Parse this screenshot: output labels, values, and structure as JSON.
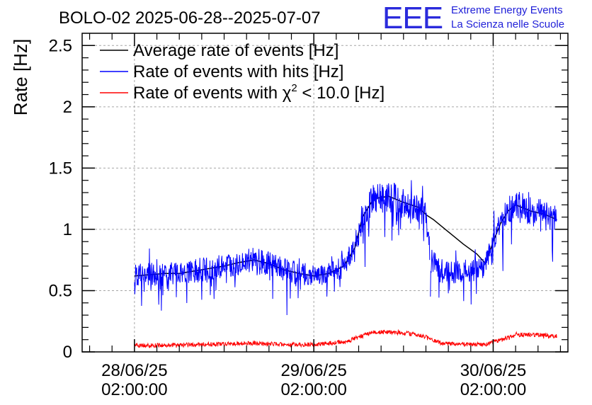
{
  "header": {
    "title": "BOLO-02 2025-06-28--2025-07-07",
    "logo_text": "EEE",
    "logo_line1": "Extreme Energy Events",
    "logo_line2": "La Scienza nelle Scuole"
  },
  "colors": {
    "average": "#000000",
    "hits": "#0000ff",
    "chi2": "#ff0000",
    "logo": "#2b2bdc"
  },
  "chart_data": {
    "type": "line",
    "title": "BOLO-02 2025-06-28--2025-07-07",
    "ylabel": "Rate [Hz]",
    "xlabel": "",
    "ylim": [
      0,
      2.6
    ],
    "yticks": [
      "0",
      "0.5",
      "1",
      "1.5",
      "2",
      "2.5"
    ],
    "x_ticks": [
      {
        "line1": "28/06/25",
        "line2": "02:00:00"
      },
      {
        "line1": "29/06/25",
        "line2": "02:00:00"
      },
      {
        "line1": "30/06/25",
        "line2": "02:00:00"
      }
    ],
    "x_unit": "hours since 28/06/25 02:00:00",
    "xlim": [
      -7,
      58
    ],
    "grid": true,
    "legend_position": "top-left",
    "legend": [
      {
        "key": "average",
        "label": "Average rate of events [Hz]"
      },
      {
        "key": "hits",
        "label": "Rate of events with hits [Hz]"
      },
      {
        "key": "chi2",
        "label_prefix": "Rate of events with χ",
        "label_sup": "2",
        "label_suffix": " < 10.0 [Hz]"
      }
    ],
    "series": [
      {
        "name": "Average rate of events [Hz]",
        "key": "average",
        "points": [
          [
            0.0,
            0.62
          ],
          [
            2.0,
            0.63
          ],
          [
            4.0,
            0.64
          ],
          [
            6.0,
            0.64
          ],
          [
            8.0,
            0.66
          ],
          [
            10.0,
            0.68
          ],
          [
            12.0,
            0.7
          ],
          [
            14.0,
            0.73
          ],
          [
            16.0,
            0.75
          ],
          [
            18.0,
            0.72
          ],
          [
            20.0,
            0.67
          ],
          [
            22.0,
            0.64
          ],
          [
            24.0,
            0.62
          ],
          [
            26.0,
            0.64
          ],
          [
            28.0,
            0.7
          ],
          [
            29.5,
            0.85
          ],
          [
            30.5,
            1.1
          ],
          [
            32.0,
            1.25
          ],
          [
            34.0,
            1.27
          ],
          [
            36.0,
            1.22
          ],
          [
            38.0,
            1.18
          ],
          [
            39.0,
            1.12
          ],
          [
            40.0,
            1.08
          ],
          [
            42.0,
            0.98
          ],
          [
            44.0,
            0.88
          ],
          [
            45.8,
            0.8
          ],
          [
            47.0,
            0.72
          ],
          [
            48.0,
            0.9
          ],
          [
            49.0,
            1.05
          ],
          [
            50.0,
            1.15
          ],
          [
            51.0,
            1.2
          ],
          [
            53.0,
            1.15
          ],
          [
            55.0,
            1.12
          ],
          [
            56.5,
            1.08
          ]
        ]
      },
      {
        "name": "Rate of events with hits [Hz]",
        "key": "hits",
        "points": [
          [
            0.0,
            0.62
          ],
          [
            2.0,
            0.63
          ],
          [
            4.0,
            0.64
          ],
          [
            6.0,
            0.64
          ],
          [
            8.0,
            0.66
          ],
          [
            10.0,
            0.68
          ],
          [
            12.0,
            0.7
          ],
          [
            14.0,
            0.73
          ],
          [
            16.0,
            0.75
          ],
          [
            18.0,
            0.72
          ],
          [
            20.0,
            0.67
          ],
          [
            22.0,
            0.64
          ],
          [
            24.0,
            0.62
          ],
          [
            26.0,
            0.64
          ],
          [
            28.0,
            0.7
          ],
          [
            29.5,
            0.85
          ],
          [
            30.5,
            1.1
          ],
          [
            32.0,
            1.25
          ],
          [
            34.0,
            1.27
          ],
          [
            36.0,
            1.22
          ],
          [
            38.0,
            1.18
          ],
          [
            39.0,
            1.12
          ],
          [
            39.6,
            0.75
          ],
          [
            41.0,
            0.66
          ],
          [
            43.0,
            0.65
          ],
          [
            45.0,
            0.66
          ],
          [
            45.8,
            0.68
          ],
          [
            47.0,
            0.72
          ],
          [
            48.0,
            0.9
          ],
          [
            49.0,
            1.05
          ],
          [
            50.0,
            1.15
          ],
          [
            51.0,
            1.2
          ],
          [
            53.0,
            1.15
          ],
          [
            55.0,
            1.12
          ],
          [
            56.5,
            1.08
          ]
        ]
      },
      {
        "name": "Rate of events with χ2 < 10.0 [Hz]",
        "key": "chi2",
        "points": [
          [
            0.0,
            0.05
          ],
          [
            4.0,
            0.055
          ],
          [
            8.0,
            0.06
          ],
          [
            12.0,
            0.065
          ],
          [
            16.0,
            0.07
          ],
          [
            20.0,
            0.06
          ],
          [
            24.0,
            0.06
          ],
          [
            28.0,
            0.08
          ],
          [
            30.0,
            0.12
          ],
          [
            32.0,
            0.16
          ],
          [
            35.0,
            0.16
          ],
          [
            38.0,
            0.14
          ],
          [
            39.5,
            0.11
          ],
          [
            41.0,
            0.07
          ],
          [
            45.5,
            0.06
          ],
          [
            47.0,
            0.06
          ],
          [
            49.0,
            0.1
          ],
          [
            51.0,
            0.14
          ],
          [
            54.0,
            0.14
          ],
          [
            56.5,
            0.13
          ]
        ]
      }
    ]
  }
}
